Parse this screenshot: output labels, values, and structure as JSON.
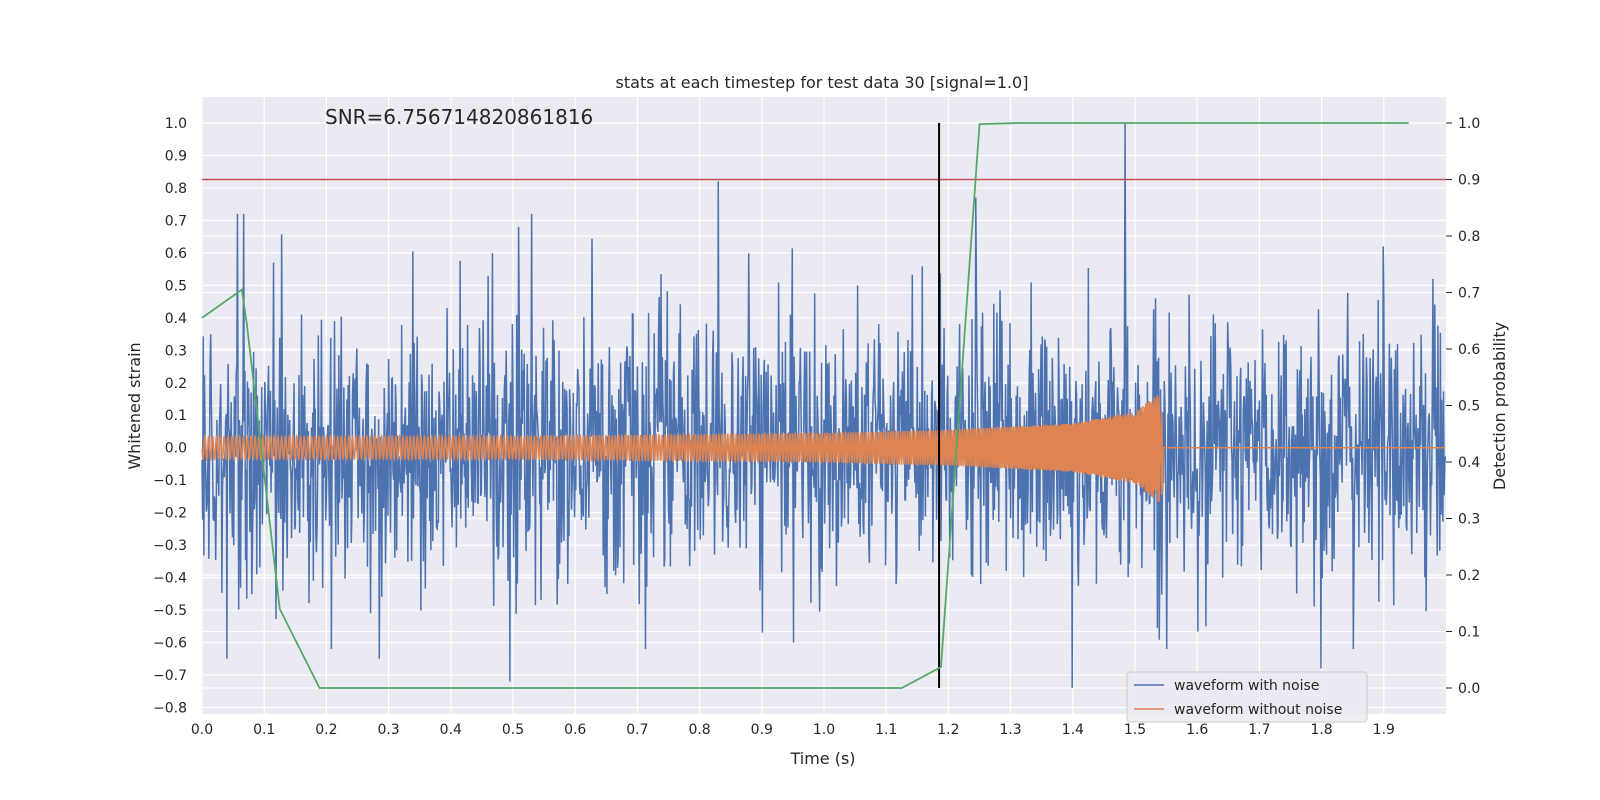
{
  "chart_data": {
    "type": "line",
    "title": "stats at each timestep for test data 30 [signal=1.0]",
    "xlabel": "Time (s)",
    "ylabel": "Whitened strain",
    "y2label": "Detection probability",
    "annotation": "SNR=6.756714820861816",
    "xlim": [
      0.0,
      2.0
    ],
    "ylim": [
      -0.82,
      1.08
    ],
    "y2lim": [
      -0.046,
      1.046
    ],
    "x_ticks": [
      0.0,
      0.1,
      0.2,
      0.3,
      0.4,
      0.5,
      0.6,
      0.7,
      0.8,
      0.9,
      1.0,
      1.1,
      1.2,
      1.3,
      1.4,
      1.5,
      1.6,
      1.7,
      1.8,
      1.9
    ],
    "x_tick_labels": [
      "0.0",
      "0.1",
      "0.2",
      "0.3",
      "0.4",
      "0.5",
      "0.6",
      "0.7",
      "0.8",
      "0.9",
      "1.0",
      "1.1",
      "1.2",
      "1.3",
      "1.4",
      "1.5",
      "1.6",
      "1.7",
      "1.8",
      "1.9"
    ],
    "y_ticks": [
      -0.8,
      -0.7,
      -0.6,
      -0.5,
      -0.4,
      -0.3,
      -0.2,
      -0.1,
      0.0,
      0.1,
      0.2,
      0.3,
      0.4,
      0.5,
      0.6,
      0.7,
      0.8,
      0.9,
      1.0
    ],
    "y_tick_labels": [
      "−0.8",
      "−0.7",
      "−0.6",
      "−0.5",
      "−0.4",
      "−0.3",
      "−0.2",
      "−0.1",
      "0.0",
      "0.1",
      "0.2",
      "0.3",
      "0.4",
      "0.5",
      "0.6",
      "0.7",
      "0.8",
      "0.9",
      "1.0"
    ],
    "y2_ticks": [
      0.0,
      0.1,
      0.2,
      0.3,
      0.4,
      0.5,
      0.6,
      0.7,
      0.8,
      0.9,
      1.0
    ],
    "y2_tick_labels": [
      "0.0",
      "0.1",
      "0.2",
      "0.3",
      "0.4",
      "0.5",
      "0.6",
      "0.7",
      "0.8",
      "0.9",
      "1.0"
    ],
    "grid": true,
    "legend_position": "bottom-right",
    "background": "#eaeaf2",
    "series": [
      {
        "name": "waveform with noise",
        "color": "#4c72b0",
        "axis": "left",
        "description_values": "dense noisy trace, roughly within -0.7..0.7 with peaks at t≈0.83 (0.82) and t≈1.485 (1.0)",
        "peaks": [
          {
            "x": 0.057,
            "y": 0.72
          },
          {
            "x": 0.067,
            "y": 0.72
          },
          {
            "x": 0.04,
            "y": -0.65
          },
          {
            "x": 0.115,
            "y": 0.57
          },
          {
            "x": 0.285,
            "y": -0.65
          },
          {
            "x": 0.495,
            "y": -0.72
          },
          {
            "x": 0.53,
            "y": 0.72
          },
          {
            "x": 0.83,
            "y": 0.82
          },
          {
            "x": 1.245,
            "y": 0.77
          },
          {
            "x": 1.4,
            "y": -0.74
          },
          {
            "x": 1.485,
            "y": 1.0
          },
          {
            "x": 1.8,
            "y": -0.68
          },
          {
            "x": 1.9,
            "y": 0.62
          },
          {
            "x": 1.98,
            "y": 0.52
          }
        ]
      },
      {
        "name": "waveform without noise",
        "color": "#dd8452",
        "axis": "left",
        "description_values": "chirp oscillation around 0, amplitude ≈0.035 rising to ≈0.17 at t≈1.54, then flat 0",
        "amplitude_envelope": [
          {
            "x": 0.0,
            "y": 0.035
          },
          {
            "x": 0.5,
            "y": 0.035
          },
          {
            "x": 1.0,
            "y": 0.045
          },
          {
            "x": 1.2,
            "y": 0.055
          },
          {
            "x": 1.4,
            "y": 0.075
          },
          {
            "x": 1.5,
            "y": 0.11
          },
          {
            "x": 1.54,
            "y": 0.17
          },
          {
            "x": 1.56,
            "y": 0.0
          },
          {
            "x": 1.999,
            "y": 0.0
          }
        ]
      },
      {
        "name": "detection probability",
        "color": "#55a868",
        "axis": "right",
        "x": [
          0.0,
          0.064,
          0.072,
          0.125,
          0.189,
          0.25,
          0.5,
          0.75,
          1.0,
          1.125,
          1.188,
          1.25,
          1.313,
          1.5,
          1.75,
          1.94
        ],
        "values": [
          0.655,
          0.705,
          0.645,
          0.14,
          0.0,
          0.0,
          0.0,
          0.0,
          0.0,
          0.0,
          0.037,
          0.998,
          1.0,
          1.0,
          1.0,
          1.0
        ]
      }
    ],
    "reference_lines": [
      {
        "orientation": "horizontal",
        "axis": "right",
        "value": 0.9,
        "color": "#c44e52"
      },
      {
        "orientation": "vertical",
        "value": 1.185,
        "y2_from": 0.0,
        "y2_to": 1.0,
        "color": "#000000"
      }
    ],
    "legend": [
      {
        "label": "waveform with noise",
        "color": "#4c72b0"
      },
      {
        "label": "waveform without noise",
        "color": "#dd8452"
      }
    ]
  }
}
